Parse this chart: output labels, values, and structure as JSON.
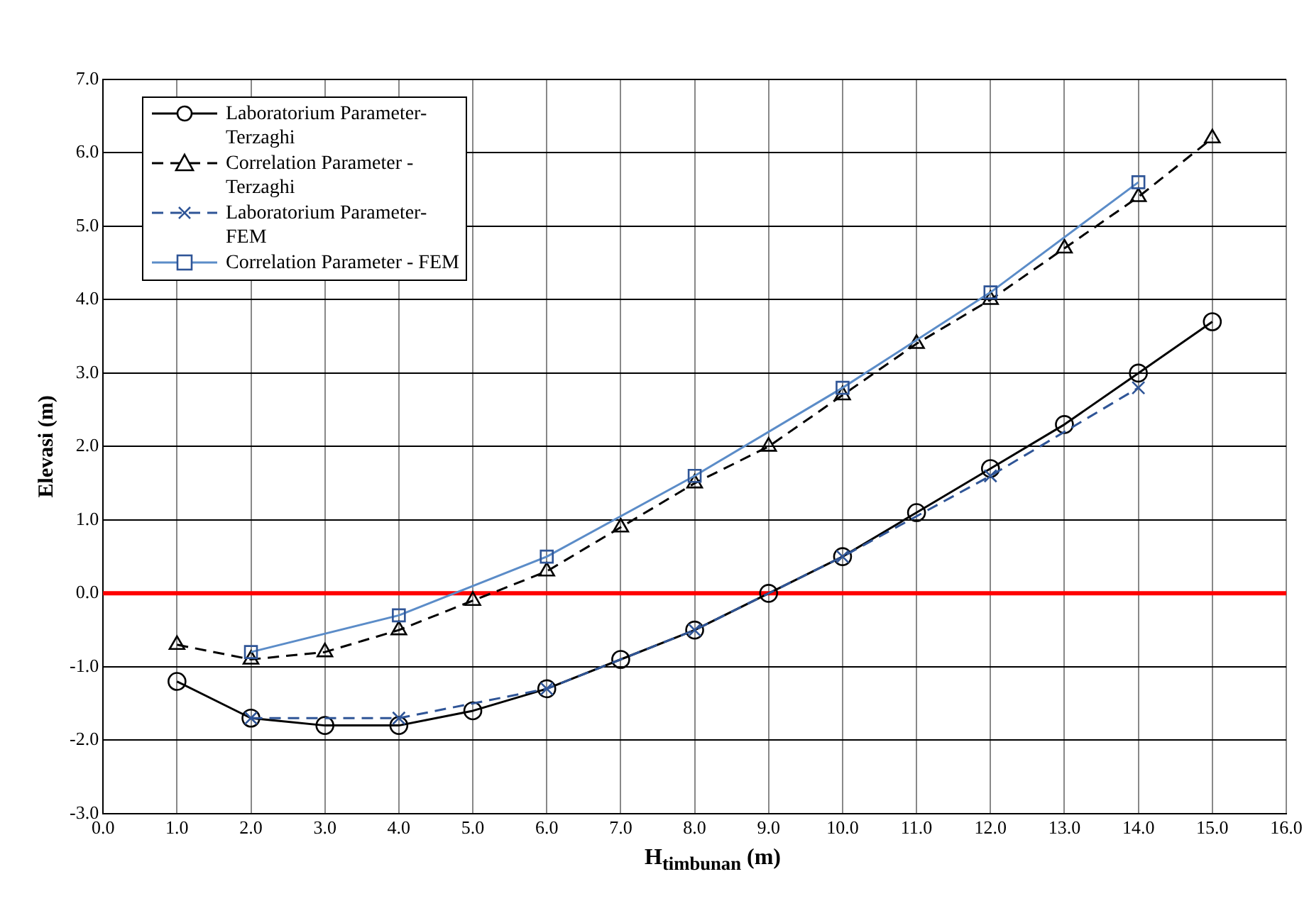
{
  "chart_data": {
    "type": "line",
    "xlabel": "H$_{timbunan}$ (m)",
    "ylabel": "Elevasi (m)",
    "xlim": [
      0,
      16
    ],
    "xticks": [
      {
        "value": 0,
        "label": "0.0"
      },
      {
        "value": 1,
        "label": "1.0"
      },
      {
        "value": 2,
        "label": "2.0"
      },
      {
        "value": 3,
        "label": "3.0"
      },
      {
        "value": 4,
        "label": "4.0"
      },
      {
        "value": 5,
        "label": "5.0"
      },
      {
        "value": 6,
        "label": "6.0"
      },
      {
        "value": 7,
        "label": "7.0"
      },
      {
        "value": 8,
        "label": "8.0"
      },
      {
        "value": 9,
        "label": "9.0"
      },
      {
        "value": 10,
        "label": "10.0"
      },
      {
        "value": 11,
        "label": "11.0"
      },
      {
        "value": 12,
        "label": "12.0"
      },
      {
        "value": 13,
        "label": "13.0"
      },
      {
        "value": 14,
        "label": "14.0"
      },
      {
        "value": 15,
        "label": "15.0"
      },
      {
        "value": 16,
        "label": "16.0"
      }
    ],
    "ylim": [
      -3,
      7
    ],
    "yticks": [
      {
        "value": -3,
        "label": "-3.0"
      },
      {
        "value": -2,
        "label": "-2.0"
      },
      {
        "value": -1,
        "label": "-1.0"
      },
      {
        "value": 0,
        "label": "0.0"
      },
      {
        "value": 1,
        "label": "1.0"
      },
      {
        "value": 2,
        "label": "2.0"
      },
      {
        "value": 3,
        "label": "3.0"
      },
      {
        "value": 4,
        "label": "4.0"
      },
      {
        "value": 5,
        "label": "5.0"
      },
      {
        "value": 6,
        "label": "6.0"
      },
      {
        "value": 7,
        "label": "7.0"
      }
    ],
    "grid": true,
    "legend": "top left",
    "ref_lines": [
      {
        "axis": "y",
        "value": 0,
        "color": "#ff0000"
      }
    ],
    "series": [
      {
        "name": "Laboratorium Parameter-Terzaghi",
        "color": "#000000",
        "marker": "circle",
        "line_style": "solid",
        "x": [
          1,
          2,
          3,
          4,
          5,
          6,
          7,
          8,
          9,
          10,
          11,
          12,
          13,
          14,
          15
        ],
        "values": [
          -1.2,
          -1.7,
          -1.8,
          -1.8,
          -1.6,
          -1.3,
          -0.9,
          -0.5,
          0.0,
          0.5,
          1.1,
          1.7,
          2.3,
          3.0,
          3.7
        ]
      },
      {
        "name": "Correlation Parameter - Terzaghi",
        "color": "#000000",
        "marker": "triangle",
        "line_style": "dashed",
        "x": [
          1,
          2,
          3,
          4,
          5,
          6,
          7,
          8,
          9,
          10,
          11,
          12,
          13,
          14,
          15
        ],
        "values": [
          -0.7,
          -0.9,
          -0.8,
          -0.5,
          -0.1,
          0.3,
          0.9,
          1.5,
          2.0,
          2.7,
          3.4,
          4.0,
          4.7,
          5.4,
          6.2
        ]
      },
      {
        "name": "Laboratorium Parameter-FEM",
        "color": "#2f5597",
        "marker": "cross",
        "line_style": "dashed",
        "x": [
          2,
          4,
          6,
          8,
          10,
          12,
          14
        ],
        "values": [
          -1.7,
          -1.7,
          -1.3,
          -0.5,
          0.5,
          1.6,
          2.8
        ]
      },
      {
        "name": "Correlation Parameter - FEM",
        "color": "#5b8cc8",
        "marker": "square",
        "line_style": "solid",
        "x": [
          2,
          4,
          6,
          8,
          10,
          12,
          14
        ],
        "values": [
          -0.8,
          -0.3,
          0.5,
          1.6,
          2.8,
          4.1,
          5.6
        ]
      }
    ]
  }
}
